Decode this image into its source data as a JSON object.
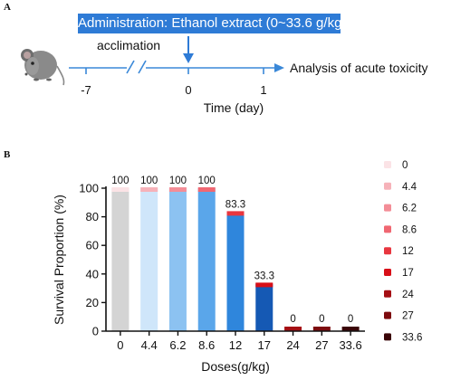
{
  "panel_a": {
    "letter": "A",
    "admin_label": "Administration: Ethanol extract (0~33.6 g/kg)",
    "acclimation_label": "acclimation",
    "ticks": [
      "-7",
      "0",
      "1"
    ],
    "arrow_label": "Analysis of acute toxicity",
    "axis_title": "Time (day)",
    "colors": {
      "box": "#2e7bd6",
      "arrow": "#2e7bd6",
      "line": "#3a88d8"
    }
  },
  "panel_b": {
    "letter": "B"
  },
  "chart_data": {
    "type": "bar",
    "stacked": true,
    "xlabel": "Doses(g/kg)",
    "ylabel": "Survival Proportion (%)",
    "ylim": [
      0,
      100
    ],
    "yticks": [
      0,
      20,
      40,
      60,
      80,
      100
    ],
    "categories": [
      "0",
      "4.4",
      "6.2",
      "8.6",
      "12",
      "17",
      "24",
      "27",
      "33.6"
    ],
    "survival": [
      100,
      100,
      100,
      100,
      83.3,
      33.3,
      0,
      0,
      0
    ],
    "value_labels": [
      "100",
      "100",
      "100",
      "100",
      "83.3",
      "33.3",
      "0",
      "0",
      "0"
    ],
    "bar_colors": [
      "#d4d4d4",
      "#cfe6fa",
      "#8cc2f1",
      "#5aa6ea",
      "#2f86dc",
      "#1559b4",
      "#1559b4",
      "#1559b4",
      "#1559b4"
    ],
    "death_cap_colors": [
      "#fbe3e6",
      "#f6b2b9",
      "#f38d97",
      "#f06772",
      "#e8363f",
      "#d80f18",
      "#a50e13",
      "#7d0b0e",
      "#3a0507"
    ],
    "legend": {
      "position": "right",
      "entries": [
        "0",
        "4.4",
        "6.2",
        "8.6",
        "12",
        "17",
        "24",
        "27",
        "33.6"
      ],
      "colors": [
        "#fbe3e6",
        "#f6b2b9",
        "#f38d97",
        "#f06772",
        "#e8363f",
        "#d80f18",
        "#a50e13",
        "#7d0b0e",
        "#3a0507"
      ]
    },
    "grid": false
  }
}
